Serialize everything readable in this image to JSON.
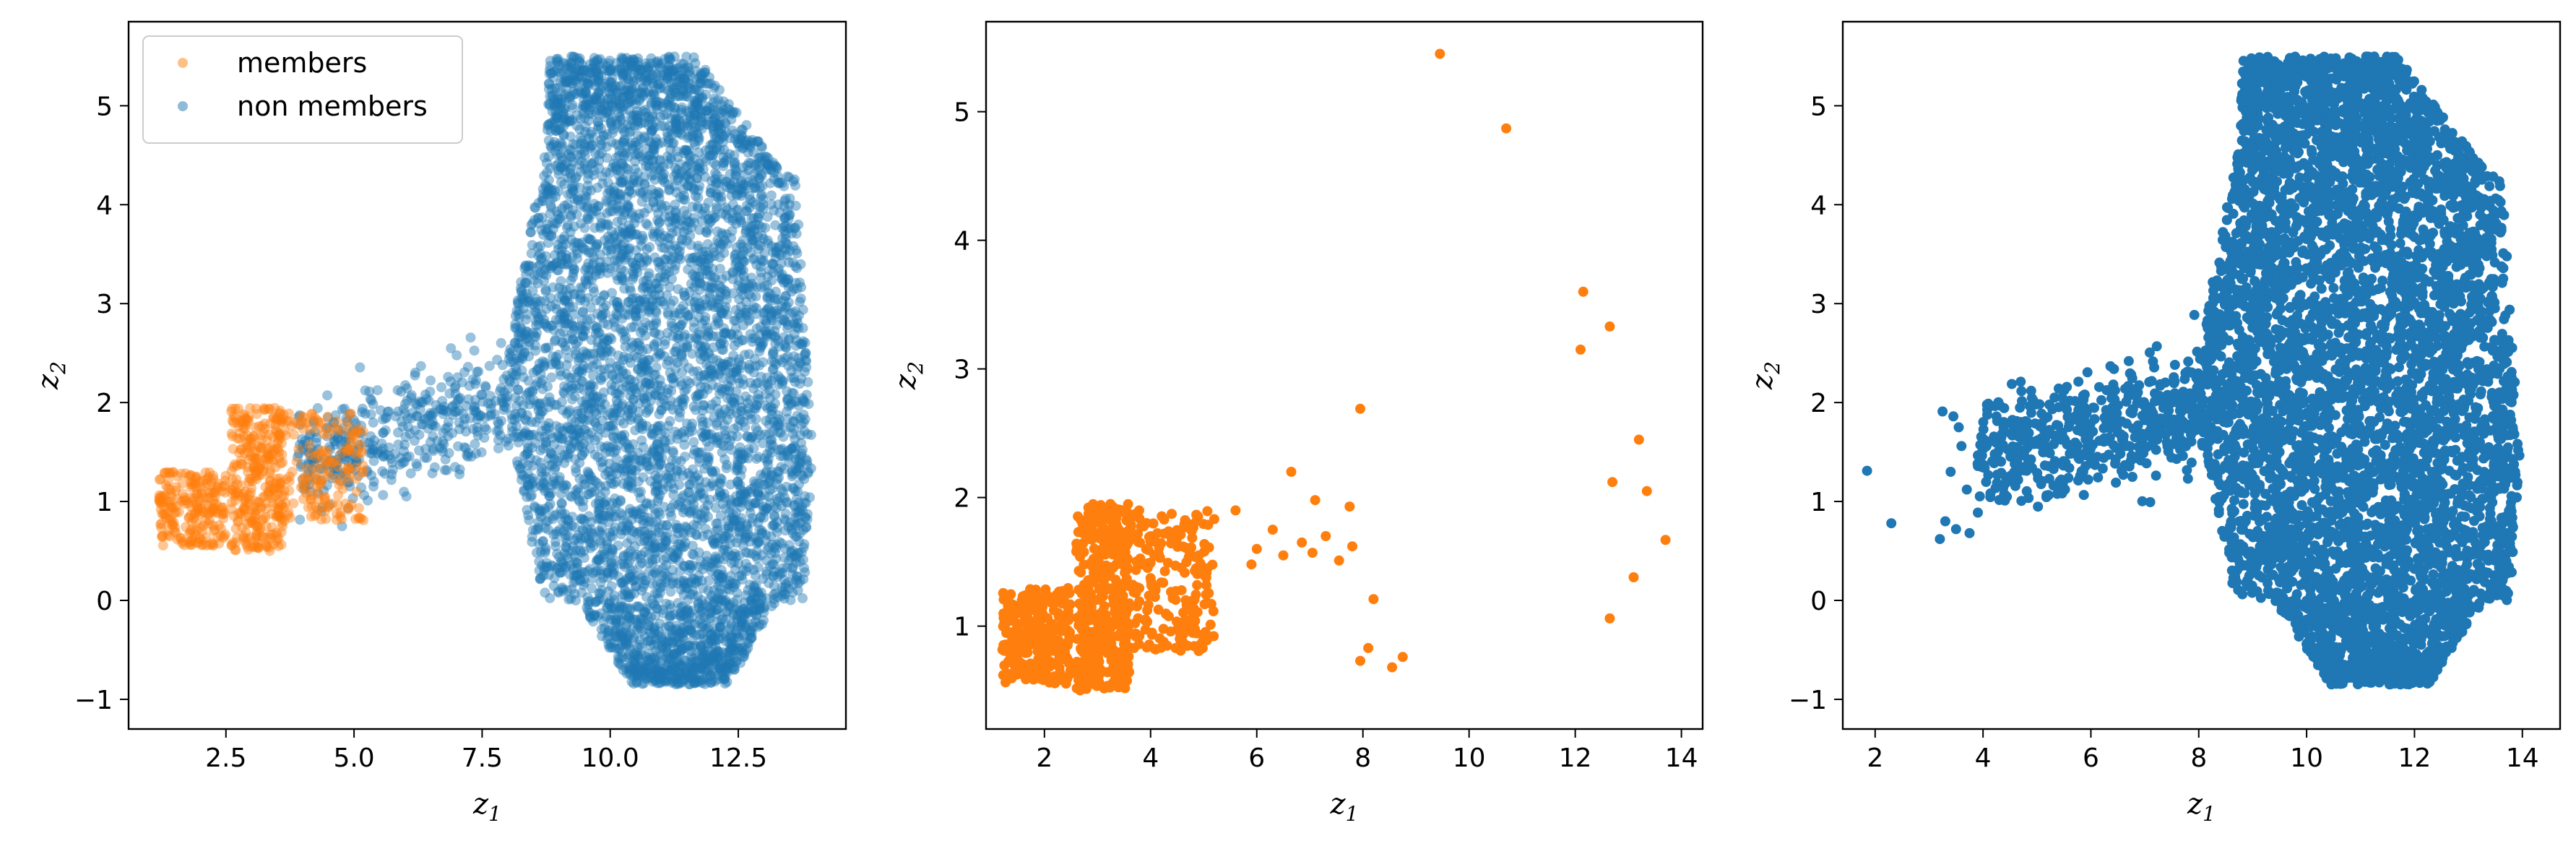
{
  "colors": {
    "members": "#ff7f0e",
    "non_members": "#1f77b4"
  },
  "chart_data": [
    {
      "type": "scatter",
      "panel": "left",
      "xlim": [
        0.6,
        14.6
      ],
      "ylim": [
        -1.3,
        5.85
      ],
      "xticks": [
        2.5,
        5.0,
        7.5,
        10.0,
        12.5
      ],
      "xtick_labels": [
        "2.5",
        "5.0",
        "7.5",
        "10.0",
        "12.5"
      ],
      "yticks": [
        -1,
        0,
        1,
        2,
        3,
        4,
        5
      ],
      "ytick_labels": [
        "−1",
        "0",
        "1",
        "2",
        "3",
        "4",
        "5"
      ],
      "xlabel_main": "z",
      "xlabel_sub": "1",
      "ylabel_main": "z",
      "ylabel_sub": "2",
      "legend": {
        "placement": "top-left",
        "entries": [
          "members",
          "non members"
        ]
      },
      "point_alpha": 0.45,
      "series": [
        {
          "name": "non members",
          "color": "#1f77b4",
          "alpha": 0.45
        },
        {
          "name": "members",
          "color": "#ff7f0e",
          "alpha": 0.45
        }
      ]
    },
    {
      "type": "scatter",
      "panel": "middle",
      "xlim": [
        0.9,
        14.4
      ],
      "ylim": [
        0.2,
        5.7
      ],
      "xticks": [
        2,
        4,
        6,
        8,
        10,
        12,
        14
      ],
      "xtick_labels": [
        "2",
        "4",
        "6",
        "8",
        "10",
        "12",
        "14"
      ],
      "yticks": [
        1,
        2,
        3,
        4,
        5
      ],
      "ytick_labels": [
        "1",
        "2",
        "3",
        "4",
        "5"
      ],
      "xlabel_main": "z",
      "xlabel_sub": "1",
      "ylabel_main": "z",
      "ylabel_sub": "2",
      "series": [
        {
          "name": "members",
          "color": "#ff7f0e",
          "alpha": 1.0
        }
      ],
      "outliers": [
        [
          9.45,
          5.45
        ],
        [
          10.7,
          4.87
        ],
        [
          12.15,
          3.6
        ],
        [
          12.65,
          3.33
        ],
        [
          12.1,
          3.15
        ],
        [
          13.2,
          2.45
        ],
        [
          12.7,
          2.12
        ],
        [
          13.35,
          2.05
        ],
        [
          13.7,
          1.67
        ],
        [
          13.1,
          1.38
        ],
        [
          12.65,
          1.06
        ],
        [
          7.95,
          2.69
        ],
        [
          8.2,
          1.21
        ],
        [
          8.1,
          0.83
        ],
        [
          7.95,
          0.73
        ],
        [
          8.55,
          0.68
        ],
        [
          8.75,
          0.76
        ],
        [
          6.65,
          2.2
        ],
        [
          7.1,
          1.98
        ],
        [
          7.75,
          1.93
        ],
        [
          7.3,
          1.7
        ],
        [
          7.8,
          1.62
        ],
        [
          7.55,
          1.51
        ],
        [
          7.05,
          1.57
        ],
        [
          6.85,
          1.65
        ],
        [
          6.5,
          1.55
        ],
        [
          6.0,
          1.6
        ],
        [
          5.9,
          1.48
        ],
        [
          6.3,
          1.75
        ],
        [
          5.6,
          1.9
        ]
      ]
    },
    {
      "type": "scatter",
      "panel": "right",
      "xlim": [
        1.4,
        14.7
      ],
      "ylim": [
        -1.3,
        5.85
      ],
      "xticks": [
        2,
        4,
        6,
        8,
        10,
        12,
        14
      ],
      "xtick_labels": [
        "2",
        "4",
        "6",
        "8",
        "10",
        "12",
        "14"
      ],
      "yticks": [
        -1,
        0,
        1,
        2,
        3,
        4,
        5
      ],
      "ytick_labels": [
        "−1",
        "0",
        "1",
        "2",
        "3",
        "4",
        "5"
      ],
      "xlabel_main": "z",
      "xlabel_sub": "1",
      "ylabel_main": "z",
      "ylabel_sub": "2",
      "series": [
        {
          "name": "non members",
          "color": "#1f77b4",
          "alpha": 1.0
        }
      ],
      "outliers": [
        [
          1.85,
          1.31
        ],
        [
          2.3,
          0.78
        ],
        [
          3.25,
          1.91
        ],
        [
          3.45,
          1.86
        ],
        [
          3.6,
          1.56
        ],
        [
          3.3,
          0.8
        ],
        [
          3.5,
          0.72
        ],
        [
          3.75,
          0.68
        ],
        [
          3.2,
          0.62
        ],
        [
          3.4,
          1.3
        ],
        [
          3.7,
          1.12
        ],
        [
          3.9,
          1.38
        ],
        [
          3.55,
          1.75
        ]
      ]
    }
  ]
}
